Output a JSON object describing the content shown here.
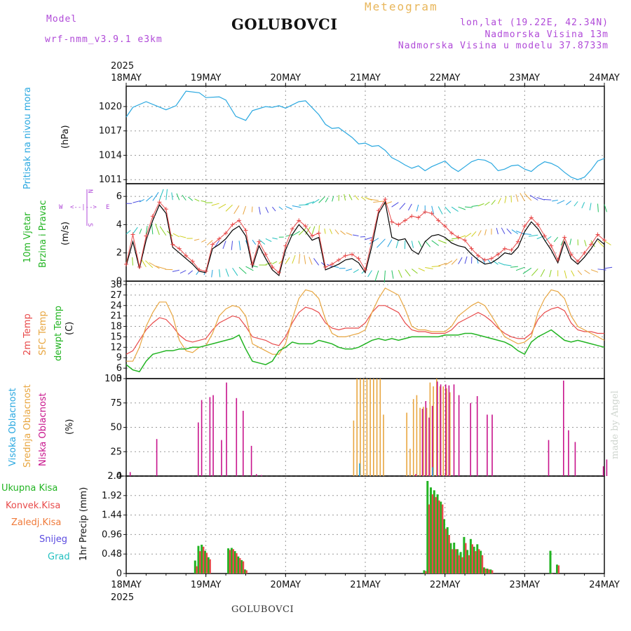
{
  "header": {
    "model_label": "Model",
    "model_name": "wrf-nmm_v3.9.1  e3km",
    "station": "GOLUBOVCI",
    "title": "Meteogram",
    "coords": "lon,lat (19.22E, 42.34N)",
    "elevation": "Nadmorska Visina 13m",
    "model_elevation": "Nadmorska Visina u modelu 37.8733m",
    "footer_station": "GOLUBOVCI",
    "credit": "made by Angel"
  },
  "colors": {
    "pressure": "#2aa8e0",
    "t2m": "#e84a4a",
    "sfc": "#e8a640",
    "dewpt": "#22b422",
    "low_cloud": "#c8148c",
    "mid_cloud": "#e8a640",
    "high_cloud": "#2aa8e0",
    "total_precip": "#22b422",
    "conv_precip": "#e84a4a",
    "frozen": "#f07a3a",
    "snow": "#5a4ae0",
    "grad": "#22c0c0",
    "wind_line": "#000000",
    "gust": "#e84a4a",
    "wind_label": "#b04ad8"
  },
  "time_axis": {
    "year_top": "2025",
    "year_bottom": "2025",
    "days": [
      "18MAY",
      "19MAY",
      "20MAY",
      "21MAY",
      "22MAY",
      "23MAY",
      "24MAY"
    ]
  },
  "wind_compass": {
    "north": "N",
    "south": "S",
    "east": "E",
    "west": "W",
    "arrows": "<--|-->"
  },
  "chart_data": [
    {
      "type": "line",
      "title": "Pritisak na nivou mora",
      "ylabel": "(hPa)",
      "ylim": [
        1010.5,
        1022.5
      ],
      "ticks": [
        1011,
        1014,
        1017,
        1020
      ],
      "x_hours": [
        0,
        2,
        6,
        12,
        15,
        18,
        22,
        24,
        28,
        30,
        33,
        36,
        38,
        42,
        44,
        46,
        48,
        52,
        54,
        58,
        60,
        62,
        64,
        66,
        68,
        70,
        72,
        74,
        76,
        78,
        80,
        82,
        84,
        86,
        88,
        90,
        92,
        96,
        98,
        100,
        102,
        104,
        106,
        108,
        110,
        112,
        114,
        116,
        118,
        120,
        122,
        124,
        126,
        128,
        130,
        132,
        134,
        136,
        138,
        140,
        142,
        144
      ],
      "values": [
        1018.7,
        1019.9,
        1020.6,
        1019.6,
        1020.1,
        1021.9,
        1021.7,
        1021.1,
        1021.2,
        1020.8,
        1018.8,
        1018.3,
        1019.5,
        1020.0,
        1019.9,
        1020.1,
        1019.8,
        1020.6,
        1020.7,
        1019.0,
        1017.8,
        1017.3,
        1017.4,
        1016.8,
        1016.2,
        1015.4,
        1015.5,
        1015.1,
        1015.2,
        1014.6,
        1013.7,
        1013.3,
        1012.8,
        1012.4,
        1012.7,
        1012.1,
        1012.6,
        1013.3,
        1012.5,
        1012.0,
        1012.6,
        1013.2,
        1013.5,
        1013.4,
        1013.0,
        1012.1,
        1012.3,
        1012.7,
        1012.8,
        1012.3,
        1012.0,
        1012.7,
        1013.2,
        1013.0,
        1012.6,
        1011.9,
        1011.3,
        1011.0,
        1011.3,
        1012.2,
        1013.3,
        1013.6
      ]
    },
    {
      "type": "line",
      "title": "10m Vjetar Brzina i Pravac",
      "ylabel": "(m/s)",
      "ylim": [
        0,
        6.9
      ],
      "ticks": [
        0,
        2,
        4,
        6
      ],
      "x_hours": [
        0,
        2,
        4,
        6,
        8,
        10,
        12,
        14,
        16,
        18,
        20,
        22,
        24,
        26,
        28,
        30,
        32,
        34,
        36,
        38,
        40,
        42,
        44,
        46,
        48,
        50,
        52,
        54,
        56,
        58,
        60,
        62,
        64,
        66,
        68,
        70,
        72,
        74,
        76,
        78,
        80,
        82,
        84,
        86,
        88,
        90,
        92,
        94,
        96,
        98,
        100,
        102,
        104,
        106,
        108,
        110,
        112,
        114,
        116,
        118,
        120,
        122,
        124,
        126,
        128,
        130,
        132,
        134,
        136,
        138,
        140,
        142,
        144
      ],
      "speed": [
        1.1,
        2.8,
        0.9,
        2.9,
        4.3,
        5.4,
        4.8,
        2.4,
        2.0,
        1.6,
        1.2,
        0.7,
        0.6,
        2.3,
        2.6,
        3.0,
        3.6,
        3.9,
        3.2,
        1.0,
        2.5,
        1.6,
        0.8,
        0.4,
        2.2,
        3.3,
        4.0,
        3.5,
        2.9,
        3.1,
        0.8,
        1.0,
        1.2,
        1.5,
        1.6,
        1.3,
        0.6,
        2.5,
        4.8,
        5.6,
        3.1,
        2.9,
        3.0,
        2.2,
        1.9,
        2.8,
        3.2,
        3.3,
        3.1,
        2.7,
        2.5,
        2.4,
        1.9,
        1.5,
        1.2,
        1.3,
        1.6,
        2.0,
        1.9,
        2.4,
        3.5,
        4.2,
        3.7,
        2.9,
        2.2,
        1.3,
        2.8,
        1.6,
        1.2,
        1.7,
        2.3,
        3.0,
        2.6
      ],
      "gust": [
        1.2,
        3.3,
        1.0,
        3.2,
        4.6,
        5.6,
        5.1,
        2.6,
        2.3,
        1.8,
        1.4,
        0.8,
        0.7,
        2.6,
        3.0,
        3.4,
        4.0,
        4.3,
        3.6,
        1.2,
        2.8,
        1.9,
        1.0,
        0.6,
        2.5,
        3.7,
        4.3,
        3.9,
        3.2,
        3.4,
        1.0,
        1.2,
        1.5,
        1.8,
        1.9,
        1.6,
        0.8,
        2.9,
        5.0,
        5.8,
        4.2,
        4.0,
        4.3,
        4.6,
        4.5,
        4.9,
        4.8,
        4.3,
        3.9,
        3.4,
        3.1,
        2.9,
        2.3,
        1.8,
        1.5,
        1.6,
        1.9,
        2.3,
        2.2,
        2.8,
        3.9,
        4.5,
        4.0,
        3.2,
        2.5,
        1.5,
        3.1,
        1.9,
        1.4,
        2.0,
        2.6,
        3.3,
        2.9
      ]
    },
    {
      "type": "line",
      "title": "2m Temp / SFC Temp / dewpt Temp",
      "ylabel": "(C)",
      "ylim": [
        3,
        31
      ],
      "ticks": [
        3,
        6,
        9,
        12,
        15,
        18,
        21,
        24,
        27,
        30
      ],
      "x_hours": [
        0,
        2,
        4,
        6,
        8,
        10,
        12,
        14,
        16,
        18,
        20,
        22,
        24,
        26,
        28,
        30,
        32,
        34,
        36,
        38,
        40,
        42,
        44,
        46,
        48,
        50,
        52,
        54,
        56,
        58,
        60,
        62,
        64,
        66,
        68,
        70,
        72,
        74,
        76,
        78,
        80,
        82,
        84,
        86,
        88,
        90,
        92,
        94,
        96,
        98,
        100,
        102,
        104,
        106,
        108,
        110,
        112,
        114,
        116,
        118,
        120,
        122,
        124,
        126,
        128,
        130,
        132,
        134,
        136,
        138,
        140,
        142,
        144
      ],
      "series": [
        {
          "name": "2m Temp",
          "values": [
            10,
            11,
            14,
            17,
            19,
            20.5,
            20,
            18,
            15.5,
            14,
            13.5,
            14,
            14.5,
            17,
            19,
            20,
            21,
            20.5,
            18,
            15,
            14.5,
            14,
            13,
            12.5,
            15,
            19,
            22,
            23.5,
            23,
            22,
            19,
            17.5,
            17,
            17.5,
            17.5,
            17.5,
            19,
            22,
            24,
            24,
            23,
            22,
            19,
            17,
            16.5,
            16.5,
            16,
            16,
            16,
            17,
            19,
            20,
            21,
            22,
            21,
            19.5,
            17.5,
            16,
            15,
            14.5,
            14.5,
            16,
            20,
            22,
            23,
            23.5,
            22.5,
            19,
            17,
            16.5,
            16.5,
            16,
            16
          ]
        },
        {
          "name": "SFC Temp",
          "values": [
            8,
            8,
            12,
            18,
            22,
            25,
            25,
            21,
            14,
            11,
            10.5,
            12,
            12.5,
            16,
            21,
            23,
            24,
            23.5,
            21,
            13,
            12,
            11,
            10,
            10,
            13,
            20,
            26,
            28.5,
            28,
            26,
            20,
            16,
            15,
            15,
            15.5,
            16,
            17,
            22,
            26,
            29,
            28,
            27,
            23,
            18,
            17,
            17,
            16.5,
            16.5,
            16.5,
            18,
            21,
            22.5,
            24,
            25,
            24,
            21,
            18,
            15,
            14,
            13,
            13.5,
            15,
            22,
            26,
            28.5,
            28,
            26,
            21,
            18,
            17,
            16,
            15,
            14
          ]
        },
        {
          "name": "dewpt Temp",
          "values": [
            7,
            5.5,
            5,
            8,
            10,
            10.5,
            11,
            11,
            11.5,
            11.5,
            12,
            12,
            12.5,
            13,
            13.5,
            14,
            14.5,
            15.5,
            11.5,
            8,
            7.5,
            7,
            8,
            11,
            12,
            13.5,
            13,
            13,
            13,
            14,
            13.5,
            13,
            12,
            11.5,
            11.5,
            12,
            13,
            14,
            14.5,
            14,
            14.5,
            14,
            14.5,
            15,
            15,
            15,
            15,
            15,
            15.5,
            15.5,
            15.5,
            16,
            16,
            15.5,
            15,
            14.5,
            14,
            13.5,
            12.5,
            11,
            10,
            13.5,
            15,
            16,
            17,
            15.5,
            14,
            13.5,
            14,
            13.5,
            13,
            12.5,
            12
          ]
        }
      ]
    },
    {
      "type": "bar",
      "title": "Visoka / Srednja / Niska Oblacnost",
      "ylabel": "(%)",
      "ylim": [
        0,
        100
      ],
      "ticks": [
        0,
        25,
        50,
        75,
        100
      ],
      "low_cloud": {
        "x_hours": [
          1,
          9,
          21.5,
          22.5,
          25,
          26,
          28.5,
          30,
          33,
          35,
          37.5,
          39,
          40.5,
          87,
          89,
          90,
          91,
          92,
          93.5,
          94.5,
          96,
          97,
          98.5,
          100,
          103.5,
          105.5,
          108.5,
          110,
          127,
          131.5,
          133,
          135,
          143.5,
          144.5
        ],
        "values": [
          4,
          38,
          55,
          78,
          81,
          83,
          37,
          96,
          80,
          67,
          31,
          2,
          1,
          2,
          69,
          77,
          60,
          72,
          97,
          94,
          94,
          93,
          94,
          83,
          75,
          82,
          63,
          63,
          37,
          98,
          47,
          35,
          10,
          17
        ]
      },
      "mid_cloud": {
        "x_hours": [
          68.5,
          69.5,
          70.5,
          71.5,
          72.5,
          73.5,
          74.5,
          75.5,
          76.5,
          77.5,
          84.5,
          85.5,
          86.5,
          87.5,
          88.5,
          89.5,
          90.5,
          91.5,
          92.5,
          93.5,
          94.5,
          95.5,
          96.5,
          97.5
        ],
        "values": [
          57,
          100,
          100,
          100,
          100,
          100,
          100,
          100,
          100,
          63,
          65,
          28,
          79,
          83,
          70,
          71,
          70,
          96,
          92,
          100,
          92,
          92,
          90,
          86
        ]
      },
      "high_cloud": {
        "x_hours": [
          70.5,
          92.5
        ],
        "values": [
          13,
          9
        ]
      }
    },
    {
      "type": "bar",
      "title": "1hr Precip",
      "ylabel": "1hr Precip (mm)",
      "ylim": [
        0,
        2.4
      ],
      "ticks": [
        0,
        0.48,
        0.96,
        1.44,
        1.92,
        2.4
      ],
      "total": {
        "x_hours": [
          21,
          22,
          23,
          24,
          25,
          31,
          32,
          33,
          34,
          35,
          36,
          90,
          91,
          92,
          93,
          94,
          95,
          96,
          97,
          98,
          99,
          100,
          101,
          102,
          103,
          104,
          105,
          106,
          107,
          108,
          109,
          110,
          128,
          130
        ],
        "values": [
          0.32,
          0.68,
          0.71,
          0.56,
          0.4,
          0.62,
          0.63,
          0.55,
          0.42,
          0.33,
          0.1,
          0.08,
          2.28,
          2.12,
          2.05,
          1.95,
          1.77,
          1.34,
          1.14,
          0.75,
          0.76,
          0.6,
          0.53,
          0.9,
          0.58,
          0.85,
          0.66,
          0.72,
          0.56,
          0.15,
          0.12,
          0.1,
          0.56,
          0.22
        ]
      },
      "convective": {
        "x_hours": [
          21,
          22,
          23,
          24,
          25,
          31,
          32,
          33,
          34,
          35,
          36,
          90,
          91,
          92,
          93,
          94,
          95,
          96,
          97,
          98,
          99,
          100,
          101,
          102,
          103,
          104,
          105,
          106,
          107,
          108,
          109,
          110,
          128,
          130
        ],
        "values": [
          0.18,
          0.55,
          0.66,
          0.51,
          0.35,
          0.58,
          0.6,
          0.5,
          0.38,
          0.3,
          0.08,
          0.06,
          1.7,
          1.95,
          1.88,
          1.8,
          1.7,
          1.1,
          0.95,
          0.6,
          0.6,
          0.45,
          0.4,
          0.75,
          0.45,
          0.72,
          0.55,
          0.6,
          0.45,
          0.12,
          0.1,
          0.08,
          0.0,
          0.2
        ]
      }
    }
  ],
  "panel_labels": {
    "pressure": {
      "line1": "Pritisak na nivou mora",
      "unit": "(hPa)"
    },
    "wind": {
      "line1": "10m Vjetar",
      "line2": "Brzina i Pravac",
      "unit": "(m/s)"
    },
    "temp": {
      "t2m": "2m Temp",
      "sfc": "SFC Temp",
      "dew": "dewpt Temp",
      "unit": "(C)"
    },
    "cloud": {
      "high": "Visoka Oblacnost",
      "mid": "Srednja Oblacnost",
      "low": "Niska Oblacnost",
      "unit": "(%)"
    },
    "precip": {
      "total": "Ukupna Kisa",
      "conv": "Konvek.Kisa",
      "frozen": "Zaledj.Kisa",
      "snow": "Snijeg",
      "grad": "Grad",
      "unit": "1hr Precip (mm)"
    }
  }
}
